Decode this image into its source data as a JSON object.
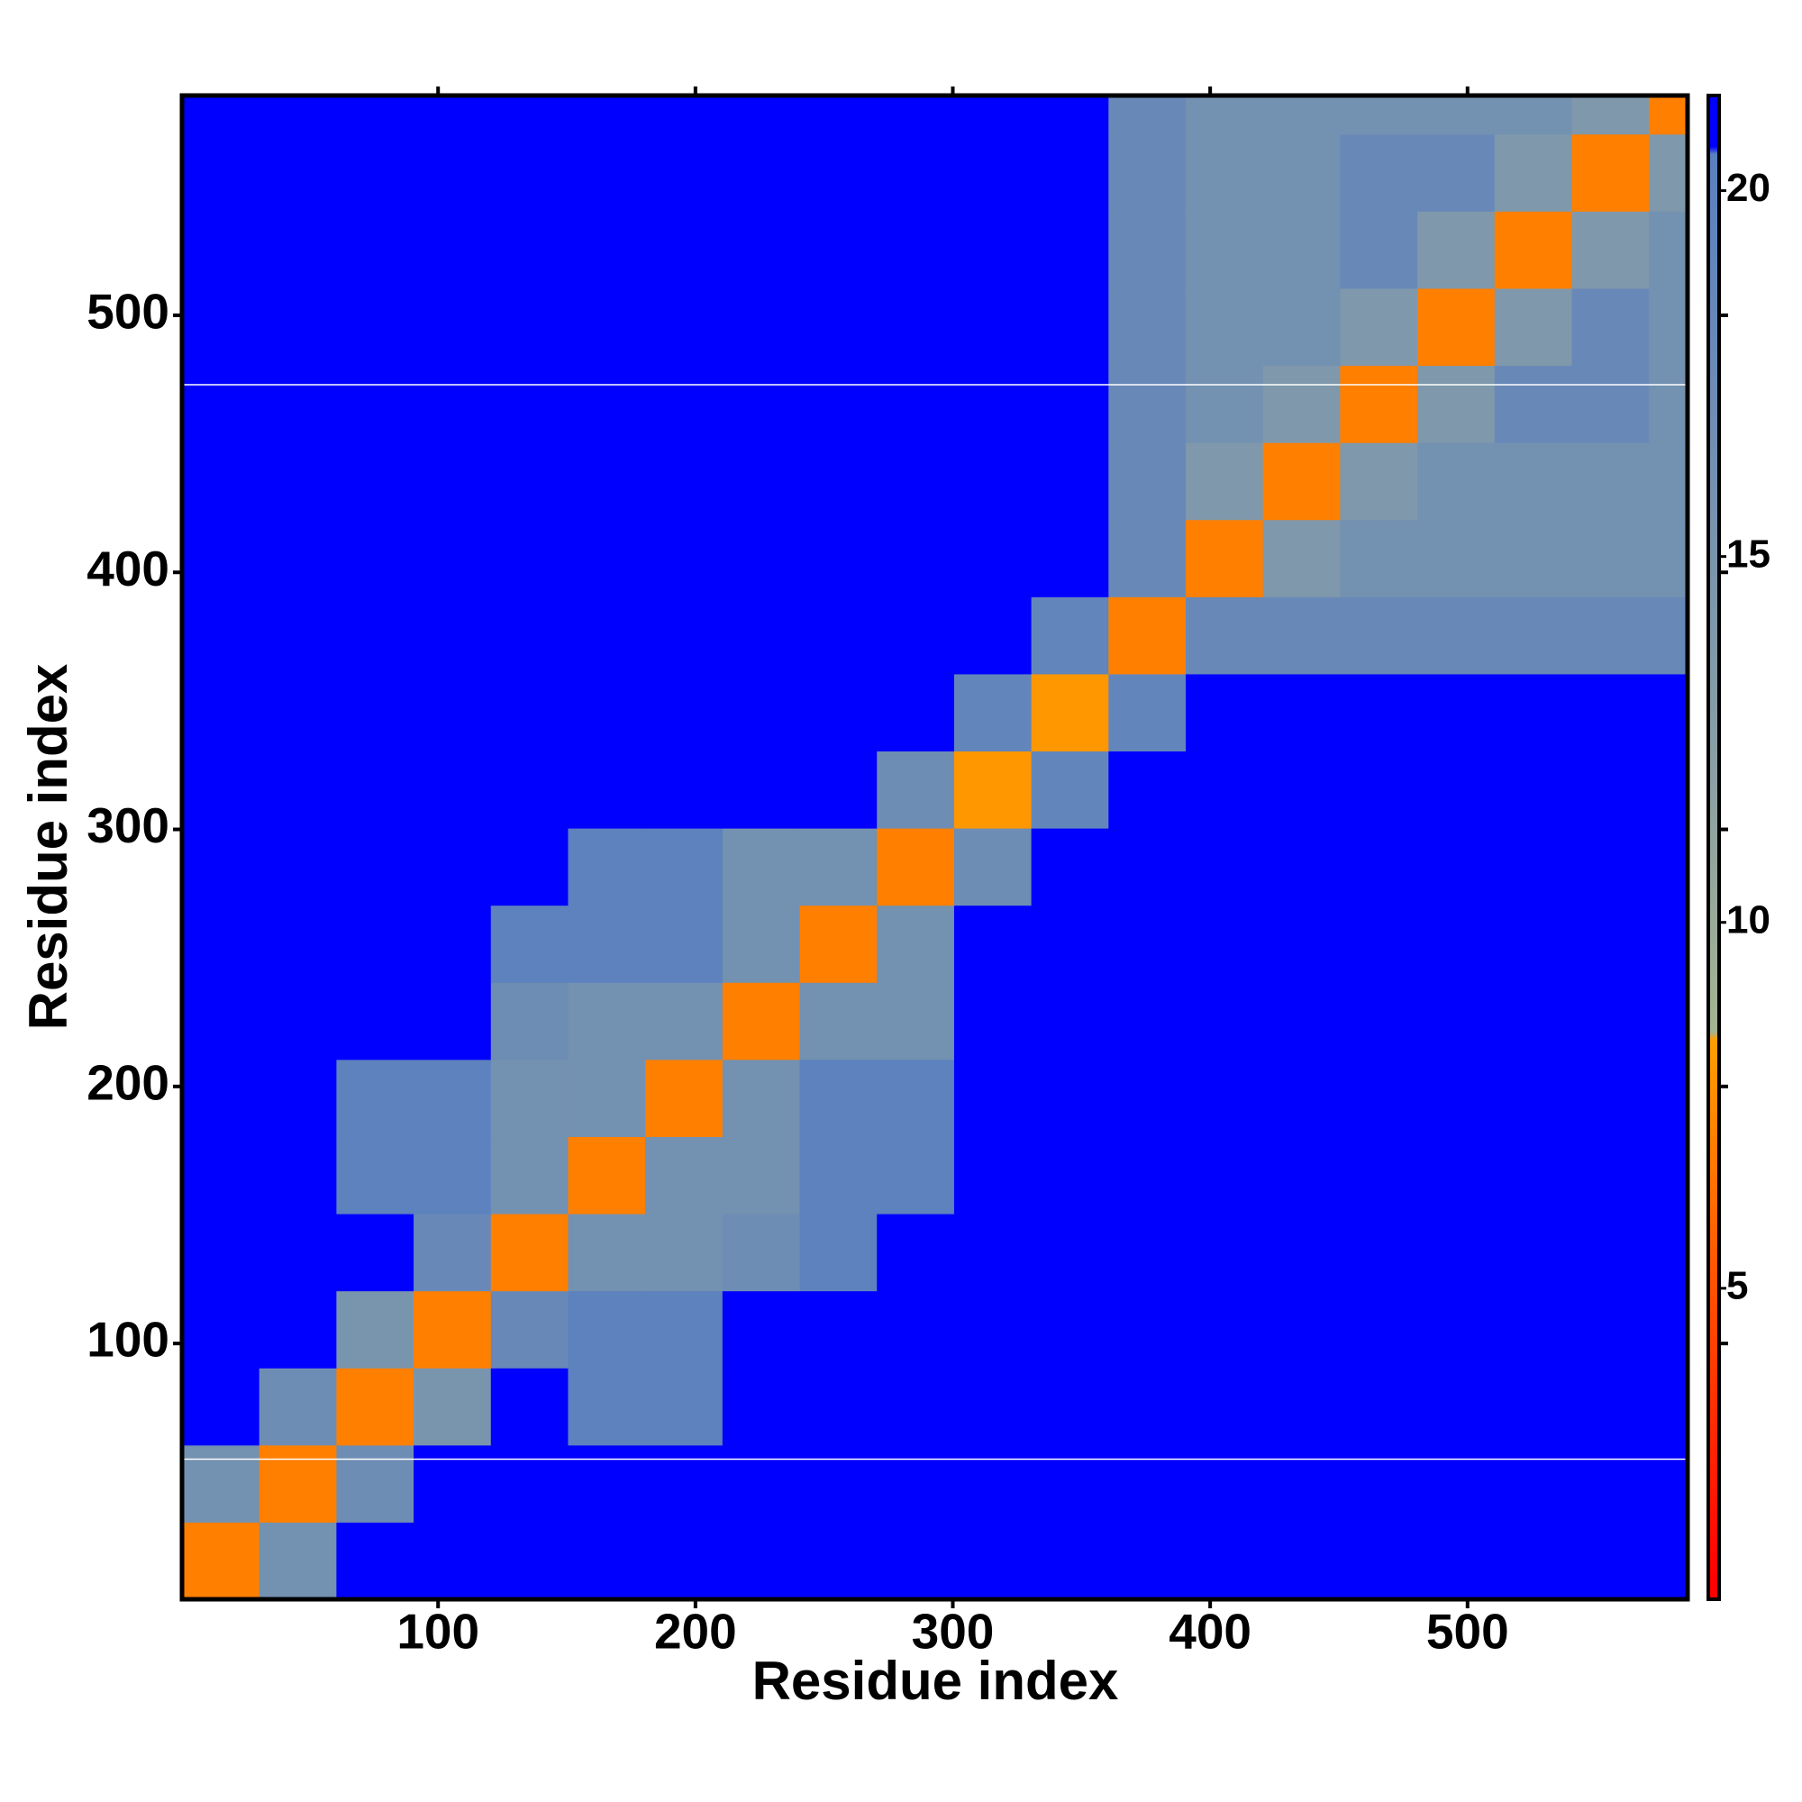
{
  "chart_data": {
    "type": "heatmap",
    "xlabel": "Residue index",
    "ylabel": "Residue index",
    "xbins": [
      0.5,
      30.5,
      60.5,
      90.5,
      120.5,
      150.5,
      180.5,
      210.5,
      240.5,
      270.5,
      300.5,
      330.5,
      360.5,
      390.5,
      420.5,
      450.5,
      480.5,
      510.5,
      540.5,
      570.5,
      585.5
    ],
    "ybins": [
      0.5,
      30.5,
      60.5,
      90.5,
      120.5,
      150.5,
      180.5,
      210.5,
      240.5,
      270.5,
      300.5,
      330.5,
      360.5,
      390.5,
      420.5,
      450.5,
      480.5,
      510.5,
      540.5,
      570.5,
      585.5
    ],
    "xlim": [
      0.5,
      585.5
    ],
    "ylim": [
      0.5,
      585.5
    ],
    "xticks": [
      100,
      200,
      300,
      400,
      500
    ],
    "yticks": [
      100,
      200,
      300,
      400,
      500
    ],
    "z": [
      [
        7,
        16,
        21,
        21,
        21,
        21,
        21,
        21,
        21,
        21,
        21,
        21,
        21,
        21,
        21,
        21,
        21,
        21,
        21,
        21
      ],
      [
        16,
        7,
        17,
        21,
        21,
        21,
        21,
        21,
        21,
        21,
        21,
        21,
        21,
        21,
        21,
        21,
        21,
        21,
        21,
        21
      ],
      [
        21,
        17,
        7,
        15,
        21,
        20,
        20,
        21,
        21,
        21,
        21,
        21,
        21,
        21,
        21,
        21,
        21,
        21,
        21,
        21
      ],
      [
        21,
        21,
        15,
        7,
        18,
        20,
        20,
        21,
        21,
        21,
        21,
        21,
        21,
        21,
        21,
        21,
        21,
        21,
        21,
        21
      ],
      [
        21,
        21,
        21,
        18,
        7,
        16,
        16,
        17,
        20,
        21,
        21,
        21,
        21,
        21,
        21,
        21,
        21,
        21,
        21,
        21
      ],
      [
        21,
        21,
        20,
        20,
        16,
        7,
        16,
        16,
        20,
        20,
        21,
        21,
        21,
        21,
        21,
        21,
        21,
        21,
        21,
        21
      ],
      [
        21,
        21,
        20,
        20,
        16,
        16,
        7,
        16,
        20,
        20,
        21,
        21,
        21,
        21,
        21,
        21,
        21,
        21,
        21,
        21
      ],
      [
        21,
        21,
        21,
        21,
        17,
        16,
        16,
        7,
        16,
        16,
        21,
        21,
        21,
        21,
        21,
        21,
        21,
        21,
        21,
        21
      ],
      [
        21,
        21,
        21,
        21,
        20,
        20,
        20,
        16,
        7,
        16,
        21,
        21,
        21,
        21,
        21,
        21,
        21,
        21,
        21,
        21
      ],
      [
        21,
        21,
        21,
        21,
        21,
        20,
        20,
        16,
        16,
        7,
        17,
        21,
        21,
        21,
        21,
        21,
        21,
        21,
        21,
        21
      ],
      [
        21,
        21,
        21,
        21,
        21,
        21,
        21,
        21,
        21,
        17,
        8,
        19,
        21,
        21,
        21,
        21,
        21,
        21,
        21,
        21
      ],
      [
        21,
        21,
        21,
        21,
        21,
        21,
        21,
        21,
        21,
        21,
        19,
        8,
        19,
        21,
        21,
        21,
        21,
        21,
        21,
        21
      ],
      [
        21,
        21,
        21,
        21,
        21,
        21,
        21,
        21,
        21,
        21,
        21,
        19,
        7,
        18,
        18,
        18,
        18,
        18,
        18,
        18
      ],
      [
        21,
        21,
        21,
        21,
        21,
        21,
        21,
        21,
        21,
        21,
        21,
        21,
        18,
        7,
        14,
        16,
        16,
        16,
        16,
        16
      ],
      [
        21,
        21,
        21,
        21,
        21,
        21,
        21,
        21,
        21,
        21,
        21,
        21,
        18,
        14,
        7,
        14,
        16,
        16,
        16,
        16
      ],
      [
        21,
        21,
        21,
        21,
        21,
        21,
        21,
        21,
        21,
        21,
        21,
        21,
        18,
        16,
        14,
        7,
        14,
        18,
        18,
        16
      ],
      [
        21,
        21,
        21,
        21,
        21,
        21,
        21,
        21,
        21,
        21,
        21,
        21,
        18,
        16,
        16,
        14,
        7,
        14,
        18,
        16
      ],
      [
        21,
        21,
        21,
        21,
        21,
        21,
        21,
        21,
        21,
        21,
        21,
        21,
        18,
        16,
        16,
        18,
        14,
        7,
        14,
        16
      ],
      [
        21,
        21,
        21,
        21,
        21,
        21,
        21,
        21,
        21,
        21,
        21,
        21,
        18,
        16,
        16,
        18,
        18,
        14,
        7,
        14
      ],
      [
        21,
        21,
        21,
        21,
        21,
        21,
        21,
        21,
        21,
        21,
        21,
        21,
        18,
        16,
        16,
        16,
        16,
        16,
        14,
        7
      ]
    ],
    "colorscale": [
      {
        "value": 1,
        "color": "#ff0000"
      },
      {
        "value": 5,
        "color": "#ff5000"
      },
      {
        "value": 8.4,
        "color": "#ffa000"
      },
      {
        "value": 8.5,
        "color": "#a4b490"
      },
      {
        "value": 12,
        "color": "#8aa0a4"
      },
      {
        "value": 20.5,
        "color": "#5a80c0"
      },
      {
        "value": 20.6,
        "color": "#0000ff"
      }
    ],
    "clim": [
      0.75,
      21.3
    ],
    "cticks": [
      5,
      10,
      15,
      20
    ],
    "hlines": [
      55,
      473
    ],
    "hline_color": "#ffffff"
  }
}
